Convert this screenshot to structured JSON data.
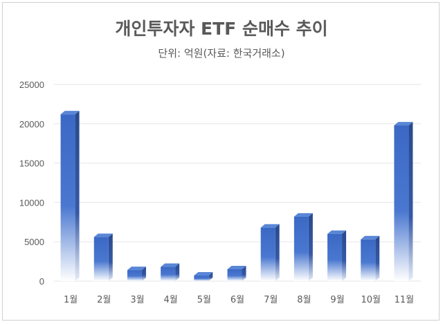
{
  "chart_data": {
    "type": "bar",
    "title": "개인투자자 ETF 순매수 추이",
    "subtitle": "단위: 억원(자료: 한국거래소)",
    "categories": [
      "1월",
      "2월",
      "3월",
      "4월",
      "5월",
      "6월",
      "7월",
      "8월",
      "9월",
      "10월",
      "11월"
    ],
    "values": [
      21200,
      5600,
      1400,
      1800,
      700,
      1500,
      6800,
      8200,
      6000,
      5300,
      19800
    ],
    "ylim": [
      0,
      25000
    ],
    "yticks": [
      "0",
      "5000",
      "10000",
      "15000",
      "20000",
      "25000"
    ],
    "grid": true,
    "legend": "none",
    "colors": {
      "bar_top": "#3f6fc9",
      "bar_bottom": "#ffffff",
      "bar_side": "#2b4d8f",
      "bar_cap": "#5a86d6",
      "grid": "#e6e6e6",
      "text": "#595959"
    }
  }
}
